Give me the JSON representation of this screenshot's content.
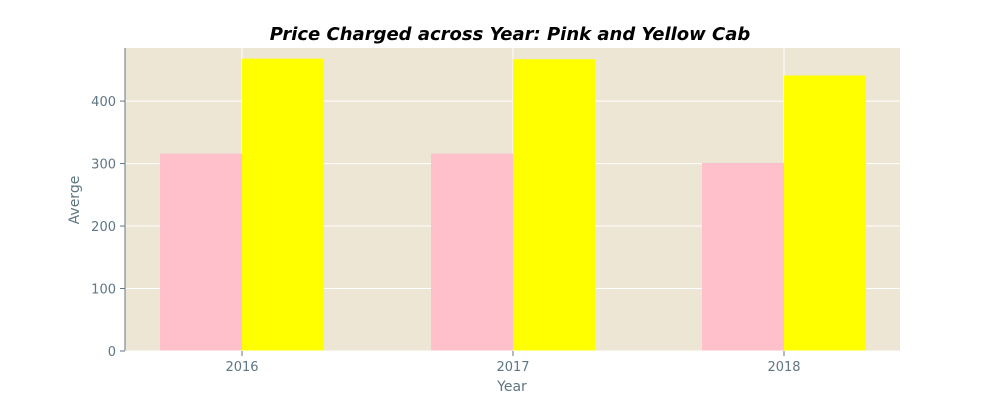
{
  "chart_data": {
    "type": "bar",
    "title": "Price Charged across Year: Pink and Yellow Cab",
    "xlabel": "Year",
    "ylabel": "Averge",
    "categories": [
      "2016",
      "2017",
      "2018"
    ],
    "series": [
      {
        "values": [
          316,
          316,
          301
        ],
        "color": "#ffc0cb"
      },
      {
        "values": [
          468,
          467,
          441
        ],
        "color": "#ffff00"
      }
    ],
    "ylim": [
      0,
      485
    ],
    "yticks": [
      0,
      100,
      200,
      300,
      400
    ],
    "grid": true,
    "legend": "none",
    "background_color": "#ede6d5",
    "grid_color": "#ffffff"
  }
}
